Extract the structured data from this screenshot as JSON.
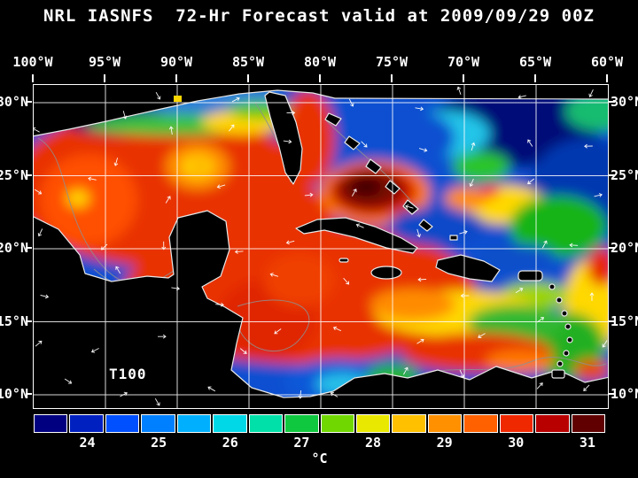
{
  "title": "NRL IASNFS  72-Hr Forecast valid at 2009/09/29 00Z",
  "map": {
    "overlay_label": "T100",
    "lon_labels": [
      "100°W",
      "95°W",
      "90°W",
      "85°W",
      "80°W",
      "75°W",
      "70°W",
      "65°W",
      "60°W"
    ],
    "lat_labels": [
      "30°N",
      "25°N",
      "20°N",
      "15°N",
      "10°N"
    ]
  },
  "colorbar": {
    "unit": "°C",
    "tick_labels": [
      "24",
      "25",
      "26",
      "27",
      "28",
      "29",
      "30",
      "31"
    ],
    "colors": [
      "#000080",
      "#0020c0",
      "#0050ff",
      "#0080ff",
      "#00b0ff",
      "#00d8e8",
      "#00e0a8",
      "#10c840",
      "#70d800",
      "#e8e800",
      "#ffc000",
      "#ff9000",
      "#ff6000",
      "#f02800",
      "#b80000",
      "#600000"
    ]
  },
  "chart_data": {
    "type": "heatmap",
    "title": "NRL IASNFS 72-Hr Forecast valid at 2009/09/29 00Z",
    "field_label": "T100",
    "unit": "°C",
    "value_range": [
      24,
      31
    ],
    "x_axis": {
      "label": "longitude",
      "ticks": [
        "100°W",
        "95°W",
        "90°W",
        "85°W",
        "80°W",
        "75°W",
        "70°W",
        "65°W",
        "60°W"
      ]
    },
    "y_axis": {
      "label": "latitude",
      "ticks": [
        "30°N",
        "25°N",
        "20°N",
        "15°N",
        "10°N"
      ]
    },
    "colorbar": {
      "ticks": [
        24,
        25,
        26,
        27,
        28,
        29,
        30,
        31
      ],
      "colors": [
        "#000080",
        "#0020c0",
        "#0050ff",
        "#0080ff",
        "#00b0ff",
        "#00d8e8",
        "#00e0a8",
        "#10c840",
        "#70d800",
        "#e8e800",
        "#ffc000",
        "#ff9000",
        "#ff6000",
        "#f02800",
        "#b80000",
        "#600000"
      ],
      "position": "bottom"
    },
    "grid": true,
    "overlays": [
      "white lat/lon grid lines",
      "white vector arrows",
      "gray bathymetry contours",
      "black land masses with white coastlines"
    ],
    "approx_region_values": [
      {
        "region": "Gulf of Mexico central",
        "value_c": 29
      },
      {
        "region": "Gulf of Mexico north shelf",
        "value_c": 26
      },
      {
        "region": "western Gulf warm eddy",
        "value_c": 30
      },
      {
        "region": "central Gulf eddy (orange/yellow ring)",
        "value_c": 27.5
      },
      {
        "region": "Loop Current / Florida Straits",
        "value_c": 29.5
      },
      {
        "region": "dark warm core north of Cuba",
        "value_c": 31
      },
      {
        "region": "western Caribbean",
        "value_c": 29.5
      },
      {
        "region": "central Caribbean",
        "value_c": 28
      },
      {
        "region": "eastern Caribbean",
        "value_c": 27.5
      },
      {
        "region": "southern Caribbean (Colombia basin cool patch)",
        "value_c": 25.5
      },
      {
        "region": "subtropical Atlantic northeast of Bahamas",
        "value_c": 24.5
      },
      {
        "region": "Atlantic east of 70W mixed greens/yellows",
        "value_c": 26.5
      }
    ]
  }
}
